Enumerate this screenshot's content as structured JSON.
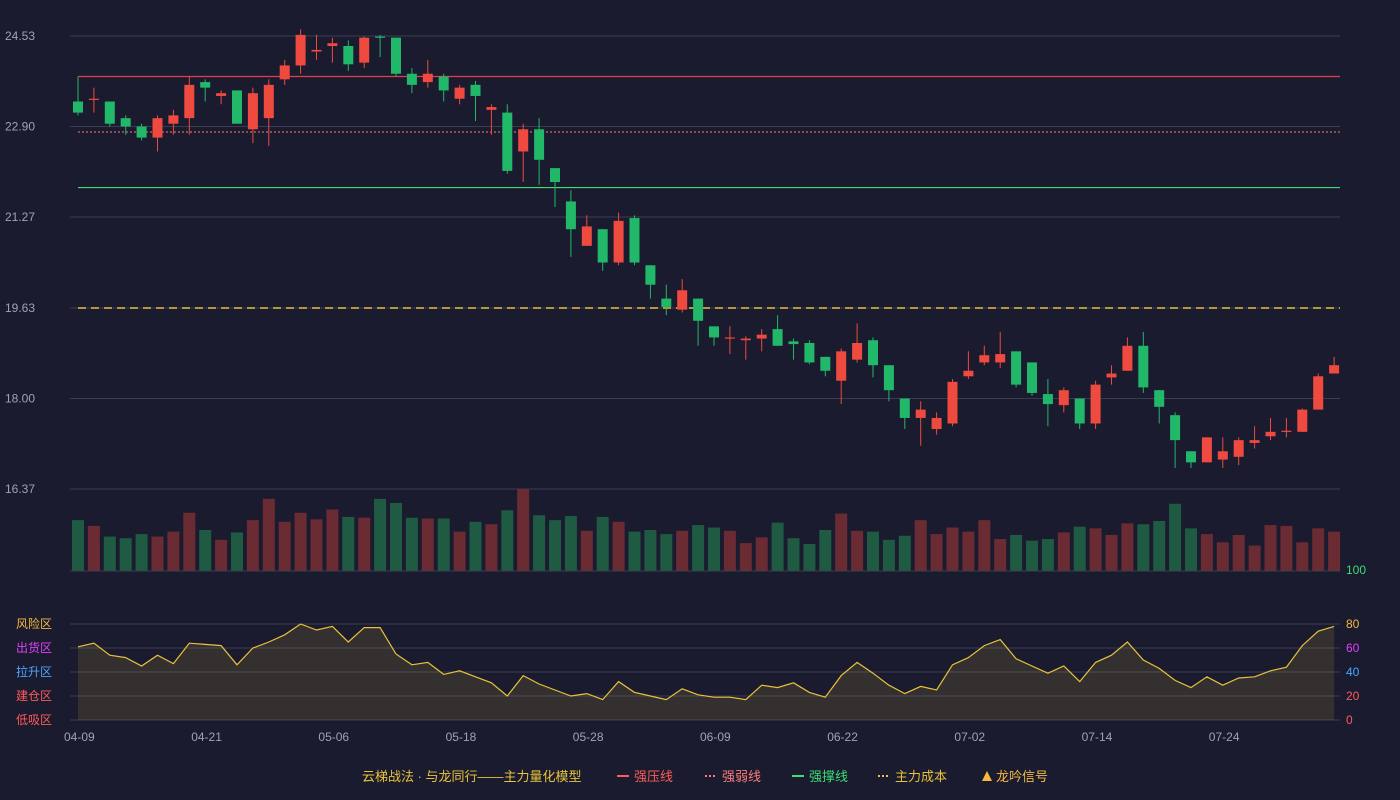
{
  "colors": {
    "background": "#1a1b2e",
    "up": "#ef4a3f",
    "down": "#21b86a",
    "grid": "#3a3d52",
    "resistance": "#e0404c",
    "weak": "#ff7b7b",
    "support": "#3ddc74",
    "cost": "#e8c23a",
    "oscillator": "#e8c23a",
    "tick": "#9da3b8",
    "signal": "#f5b942"
  },
  "chart_data": [
    {
      "type": "candlestick",
      "y_ticks": [
        "24.53",
        "22.90",
        "21.27",
        "19.63",
        "18.00",
        "16.37"
      ],
      "ylim": [
        16.37,
        24.53
      ],
      "x_ticks": [
        "04-09",
        "04-21",
        "05-06",
        "05-18",
        "05-28",
        "06-09",
        "06-22",
        "07-02",
        "07-14",
        "07-24"
      ],
      "x_tick_index": [
        0,
        8,
        16,
        24,
        32,
        40,
        48,
        56,
        64,
        72
      ],
      "lines": {
        "resistance": 23.8,
        "weak": 22.8,
        "support": 21.8,
        "cost": 19.63
      },
      "candles": [
        [
          23.35,
          23.15,
          23.8,
          23.1
        ],
        [
          23.4,
          23.4,
          23.6,
          23.15
        ],
        [
          23.35,
          22.95,
          23.35,
          22.9
        ],
        [
          23.05,
          22.9,
          23.1,
          22.75
        ],
        [
          22.9,
          22.7,
          22.95,
          22.65
        ],
        [
          22.7,
          23.05,
          23.1,
          22.45
        ],
        [
          22.95,
          23.1,
          23.2,
          22.75
        ],
        [
          23.05,
          23.65,
          23.8,
          22.75
        ],
        [
          23.7,
          23.6,
          23.75,
          23.35
        ],
        [
          23.45,
          23.5,
          23.55,
          23.3
        ],
        [
          23.55,
          22.95,
          23.55,
          22.95
        ],
        [
          22.85,
          23.5,
          23.6,
          22.6
        ],
        [
          23.05,
          23.65,
          23.75,
          22.55
        ],
        [
          23.75,
          24,
          24.1,
          23.65
        ],
        [
          24,
          24.55,
          24.65,
          23.85
        ],
        [
          24.25,
          24.28,
          24.55,
          24.1
        ],
        [
          24.35,
          24.4,
          24.5,
          24.05
        ],
        [
          24.35,
          24.02,
          24.45,
          23.9
        ],
        [
          24.05,
          24.5,
          24.52,
          23.95
        ],
        [
          24.52,
          24.5,
          24.55,
          24.15
        ],
        [
          24.5,
          23.85,
          24.5,
          23.8
        ],
        [
          23.85,
          23.65,
          23.95,
          23.5
        ],
        [
          23.7,
          23.85,
          24.1,
          23.6
        ],
        [
          23.8,
          23.55,
          23.85,
          23.35
        ],
        [
          23.4,
          23.6,
          23.65,
          23.3
        ],
        [
          23.65,
          23.45,
          23.72,
          23.0
        ],
        [
          23.2,
          23.25,
          23.3,
          22.75
        ],
        [
          23.15,
          22.1,
          23.3,
          22.05
        ],
        [
          22.45,
          22.85,
          22.95,
          21.9
        ],
        [
          22.85,
          22.3,
          23.05,
          21.85
        ],
        [
          22.15,
          21.9,
          22.15,
          21.45
        ],
        [
          21.55,
          21.05,
          21.75,
          20.55
        ],
        [
          20.75,
          21.1,
          21.3,
          20.85
        ],
        [
          21.05,
          20.45,
          21.05,
          20.3
        ],
        [
          20.45,
          21.2,
          21.35,
          20.4
        ],
        [
          21.25,
          20.45,
          21.3,
          20.4
        ],
        [
          20.4,
          20.05,
          20.4,
          19.8
        ],
        [
          19.8,
          19.65,
          20.05,
          19.5
        ],
        [
          19.6,
          19.95,
          20.15,
          19.55
        ],
        [
          19.8,
          19.4,
          19.8,
          18.95
        ],
        [
          19.3,
          19.1,
          19.3,
          18.95
        ],
        [
          19.1,
          19.1,
          19.3,
          18.8
        ],
        [
          19.05,
          19.08,
          19.12,
          18.7
        ],
        [
          19.08,
          19.15,
          19.25,
          18.85
        ],
        [
          19.25,
          18.95,
          19.5,
          18.95
        ],
        [
          19.03,
          18.98,
          19.08,
          18.7
        ],
        [
          19.0,
          18.65,
          19.05,
          18.62
        ],
        [
          18.75,
          18.5,
          18.75,
          18.4
        ],
        [
          18.32,
          18.85,
          18.9,
          17.9
        ],
        [
          18.7,
          19.0,
          19.35,
          18.65
        ],
        [
          19.05,
          18.6,
          19.1,
          18.38
        ],
        [
          18.6,
          18.15,
          18.6,
          17.95
        ],
        [
          18.0,
          17.65,
          18.0,
          17.45
        ],
        [
          17.65,
          17.8,
          17.95,
          17.15
        ],
        [
          17.45,
          17.65,
          17.75,
          17.35
        ],
        [
          17.55,
          18.3,
          18.35,
          17.5
        ],
        [
          18.4,
          18.5,
          18.85,
          18.35
        ],
        [
          18.65,
          18.78,
          18.95,
          18.6
        ],
        [
          18.65,
          18.8,
          19.2,
          18.55
        ],
        [
          18.85,
          18.25,
          18.85,
          18.2
        ],
        [
          18.65,
          18.1,
          18.65,
          18.05
        ],
        [
          18.08,
          17.9,
          18.35,
          17.5
        ],
        [
          17.88,
          18.15,
          18.2,
          17.75
        ],
        [
          18.0,
          17.55,
          18.0,
          17.45
        ],
        [
          17.55,
          18.25,
          18.32,
          17.45
        ],
        [
          18.38,
          18.45,
          18.6,
          18.25
        ],
        [
          18.5,
          18.95,
          19.1,
          18.5
        ],
        [
          18.95,
          18.2,
          19.2,
          18.1
        ],
        [
          18.15,
          17.85,
          18.15,
          17.55
        ],
        [
          17.7,
          17.25,
          17.75,
          16.75
        ],
        [
          17.05,
          16.85,
          17.05,
          16.75
        ],
        [
          16.85,
          17.3,
          17.3,
          16.85
        ],
        [
          16.9,
          17.05,
          17.3,
          16.75
        ],
        [
          16.95,
          17.25,
          17.3,
          16.8
        ],
        [
          17.2,
          17.25,
          17.5,
          17.1
        ],
        [
          17.32,
          17.4,
          17.65,
          17.25
        ],
        [
          17.4,
          17.42,
          17.65,
          17.3
        ],
        [
          17.4,
          17.8,
          17.82,
          17.4
        ],
        [
          17.8,
          18.4,
          18.45,
          17.85
        ],
        [
          18.45,
          18.6,
          18.75,
          18.5
        ]
      ],
      "volumes": [
        0.62,
        0.55,
        0.42,
        0.4,
        0.45,
        0.42,
        0.48,
        0.71,
        0.5,
        0.38,
        0.47,
        0.62,
        0.88,
        0.6,
        0.71,
        0.63,
        0.75,
        0.66,
        0.65,
        0.88,
        0.83,
        0.65,
        0.64,
        0.64,
        0.48,
        0.6,
        0.57,
        0.74,
        1.0,
        0.68,
        0.62,
        0.67,
        0.49,
        0.66,
        0.6,
        0.48,
        0.5,
        0.45,
        0.49,
        0.56,
        0.53,
        0.49,
        0.34,
        0.41,
        0.59,
        0.4,
        0.33,
        0.5,
        0.7,
        0.49,
        0.48,
        0.38,
        0.43,
        0.62,
        0.45,
        0.53,
        0.48,
        0.62,
        0.39,
        0.44,
        0.37,
        0.39,
        0.47,
        0.54,
        0.52,
        0.44,
        0.58,
        0.57,
        0.61,
        0.82,
        0.52,
        0.45,
        0.35,
        0.44,
        0.31,
        0.56,
        0.55,
        0.35,
        0.52,
        0.48
      ]
    },
    {
      "type": "line",
      "y_ticks": [
        "0",
        "20",
        "40",
        "60",
        "80",
        "100"
      ],
      "ylim": [
        0,
        100
      ],
      "zones": [
        "风险区",
        "出货区",
        "拉升区",
        "建仓区",
        "低吸区"
      ],
      "zone_colors": [
        "#f5b942",
        "#e040fb",
        "#4da3ff",
        "#ff5a5a",
        "#ff5a5a"
      ],
      "y_tick_colors": [
        "#ff5a5a",
        "#ff5a5a",
        "#4da3ff",
        "#e040fb",
        "#f5b942",
        "#3ddc74"
      ],
      "values": [
        61,
        64,
        54,
        52,
        45,
        54,
        47,
        64,
        63,
        62,
        46,
        60,
        65,
        71,
        80,
        75,
        78,
        65,
        77,
        77,
        55,
        46,
        48,
        38,
        41,
        36,
        31,
        20,
        37,
        30,
        25,
        20,
        22,
        17,
        32,
        23,
        20,
        17,
        26,
        21,
        19,
        19,
        17,
        29,
        27,
        31,
        23,
        19,
        37,
        48,
        39,
        29,
        22,
        28,
        25,
        46,
        52,
        62,
        67,
        51,
        45,
        39,
        45,
        32,
        48,
        54,
        65,
        50,
        43,
        33,
        27,
        36,
        29,
        35,
        36,
        41,
        44,
        62,
        74,
        78
      ]
    }
  ],
  "legend": {
    "title": "云梯战法 · 与龙同行——主力量化模型",
    "items": [
      {
        "label": "强压线",
        "icon": "solid-line-icon",
        "color": "#ff5a5a"
      },
      {
        "label": "强弱线",
        "icon": "dashed-line-icon",
        "color": "#ff7b7b"
      },
      {
        "label": "强撑线",
        "icon": "solid-line-icon",
        "color": "#3ddc74"
      },
      {
        "label": "主力成本",
        "icon": "dashed-line-icon",
        "color": "#e8c23a"
      },
      {
        "label": "龙吟信号",
        "icon": "triangle-icon",
        "color": "#f5b942"
      }
    ]
  }
}
